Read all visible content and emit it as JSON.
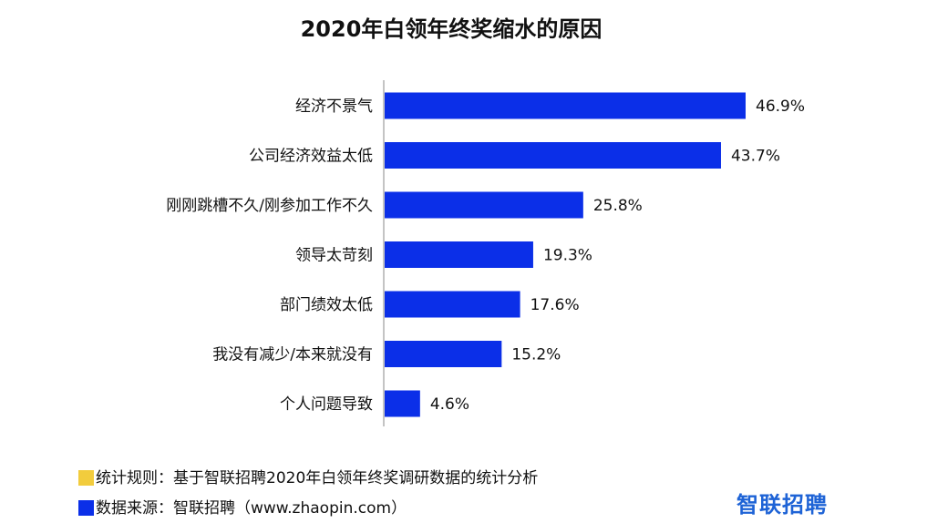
{
  "chart_data": {
    "type": "bar",
    "orientation": "horizontal",
    "title": "2020年白领年终奖缩水的原因",
    "categories": [
      "经济不景气",
      "公司经济效益太低",
      "刚刚跳槽不久/刚参加工作不久",
      "领导太苛刻",
      "部门绩效太低",
      "我没有减少/本来就没有",
      "个人问题导致"
    ],
    "values": [
      46.9,
      43.7,
      25.8,
      19.3,
      17.6,
      15.2,
      4.6
    ],
    "value_labels": [
      "46.9%",
      "43.7%",
      "25.8%",
      "19.3%",
      "17.6%",
      "15.2%",
      "4.6%"
    ],
    "unit": "%",
    "xlim": [
      0,
      50
    ],
    "grid": false,
    "bar_color": "#0b2fe8"
  },
  "notes": {
    "rule": {
      "color": "#f2cc3d",
      "text": "统计规则：基于智联招聘2020年白领年终奖调研数据的统计分析"
    },
    "source": {
      "color": "#0b2fe8",
      "text": "数据来源：智联招聘（www.zhaopin.com）"
    }
  },
  "logo": {
    "text": "智联招聘",
    "color": "#1e63d6"
  }
}
